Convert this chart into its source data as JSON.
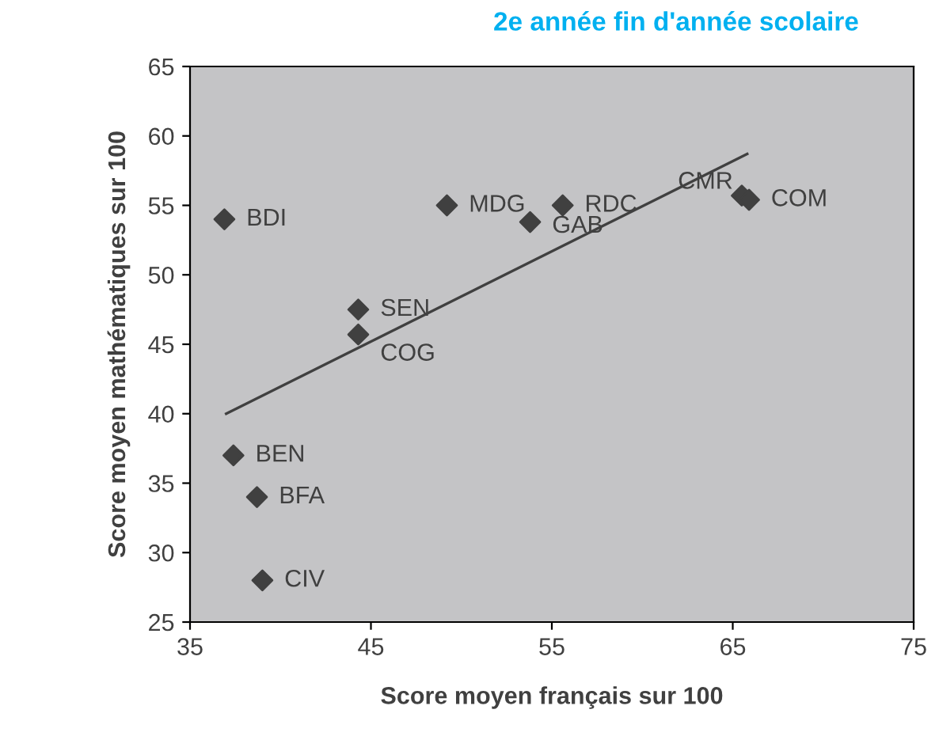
{
  "chart_data": {
    "type": "scatter",
    "title": "2e année fin d'année scolaire",
    "xlabel": "Score moyen français sur 100",
    "ylabel": "Score moyen mathématiques sur 100",
    "series": [
      {
        "color": "#404040",
        "marker": "diamond",
        "x": [
          36.9,
          49.2,
          55.6,
          53.8,
          65.5,
          65.9,
          44.3,
          44.3,
          37.4,
          38.7,
          39.0
        ],
        "values": [
          54,
          55,
          55,
          53.8,
          55.7,
          55.4,
          47.5,
          45.7,
          37,
          34,
          28
        ]
      },
      {
        "type": "line",
        "color": "#404040",
        "marker": "none",
        "x": [
          37,
          65.8
        ],
        "values": [
          40,
          58.7
        ]
      }
    ],
    "annotations": [
      {
        "text": "BDI",
        "x": 36.9,
        "y": 54
      },
      {
        "text": "MDG",
        "x": 49.2,
        "y": 55
      },
      {
        "text": "RDC",
        "x": 55.6,
        "y": 55
      },
      {
        "text": "GAB",
        "x": 53.8,
        "y": 53.8
      },
      {
        "text": "CMR",
        "x": 65.5,
        "y": 55.7
      },
      {
        "text": "COM",
        "x": 65.9,
        "y": 55.4
      },
      {
        "text": "SEN",
        "x": 44.3,
        "y": 47.5
      },
      {
        "text": "COG",
        "x": 44.3,
        "y": 45.7
      },
      {
        "text": "BEN",
        "x": 37.4,
        "y": 37
      },
      {
        "text": "BFA",
        "x": 38.7,
        "y": 34
      },
      {
        "text": "CIV",
        "x": 39.0,
        "y": 28
      }
    ],
    "xlim": [
      35,
      75
    ],
    "xticks": [
      35,
      45,
      55,
      65,
      75
    ],
    "ylim": [
      25,
      65
    ],
    "yticks": [
      25,
      30,
      35,
      40,
      45,
      50,
      55,
      60,
      65
    ],
    "grid": false,
    "legend": false
  }
}
